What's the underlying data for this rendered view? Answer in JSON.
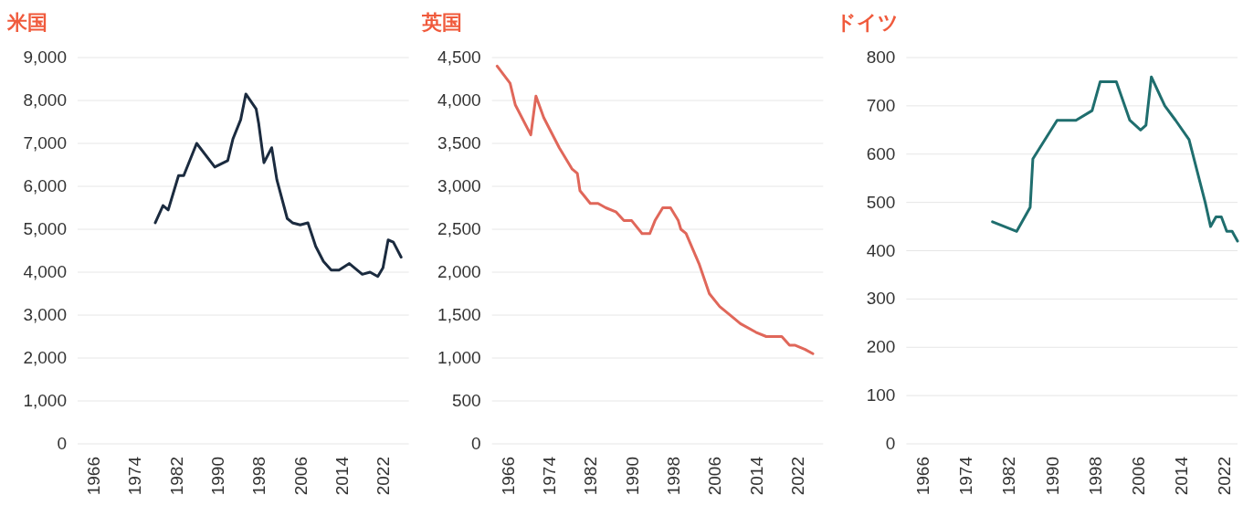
{
  "chart_data": [
    {
      "type": "line",
      "title": "米国",
      "grid": "y",
      "xlim": [
        1963,
        2027
      ],
      "xticks": [
        1966,
        1974,
        1982,
        1990,
        1998,
        2006,
        2014,
        2022
      ],
      "ylim": [
        0,
        9000
      ],
      "yticks": [
        0,
        {
          "value": 1000,
          "label": "1,000"
        },
        {
          "value": 2000,
          "label": "2,000"
        },
        {
          "value": 3000,
          "label": "3,000"
        },
        {
          "value": 4000,
          "label": "4,000"
        },
        {
          "value": 5000,
          "label": "5,000"
        },
        {
          "value": 6000,
          "label": "6,000"
        },
        {
          "value": 7000,
          "label": "7,000"
        },
        {
          "value": 8000,
          "label": "8,000"
        },
        {
          "value": 9000,
          "label": "9,000"
        }
      ],
      "x": [
        1978,
        1979.5,
        1980.5,
        1982.5,
        1983.5,
        1986,
        1989.5,
        1992,
        1993,
        1994.5,
        1995.5,
        1997.5,
        1998,
        1999,
        2000.5,
        2001.5,
        2003.5,
        2004.5,
        2006,
        2007.5,
        2009,
        2010.5,
        2012,
        2013.5,
        2015.5,
        2018,
        2019.5,
        2021,
        2022,
        2023,
        2024,
        2025.5
      ],
      "series": [
        {
          "color": "#1b2b3f",
          "values": [
            5150,
            5550,
            5450,
            6250,
            6250,
            7000,
            6450,
            6600,
            7100,
            7550,
            8150,
            7800,
            7450,
            6550,
            6900,
            6150,
            5250,
            5150,
            5100,
            5150,
            4600,
            4250,
            4050,
            4050,
            4200,
            3950,
            4000,
            3900,
            4100,
            4750,
            4700,
            4350
          ]
        }
      ]
    },
    {
      "type": "line",
      "title": "英国",
      "grid": "y",
      "xlim": [
        1963,
        2027
      ],
      "xticks": [
        1966,
        1974,
        1982,
        1990,
        1998,
        2006,
        2014,
        2022
      ],
      "ylim": [
        0,
        4500
      ],
      "yticks": [
        0,
        500,
        {
          "value": 1000,
          "label": "1,000"
        },
        {
          "value": 1500,
          "label": "1,500"
        },
        {
          "value": 2000,
          "label": "2,000"
        },
        {
          "value": 2500,
          "label": "2,500"
        },
        {
          "value": 3000,
          "label": "3,000"
        },
        {
          "value": 3500,
          "label": "3,500"
        },
        {
          "value": 4000,
          "label": "4,000"
        },
        {
          "value": 4500,
          "label": "4,500"
        }
      ],
      "x": [
        1964,
        1966.5,
        1967.5,
        1970.5,
        1971.5,
        1973,
        1976,
        1978.5,
        1979.5,
        1980,
        1982,
        1983.5,
        1985,
        1987,
        1988.5,
        1990,
        1992,
        1993.5,
        1994.5,
        1996,
        1997.5,
        1999,
        1999.5,
        2000.5,
        2003,
        2005,
        2007,
        2010,
        2011,
        2014,
        2016,
        2017.5,
        2019,
        2020.5,
        2021.5,
        2023.5,
        2025
      ],
      "series": [
        {
          "color": "#e0675a",
          "values": [
            4400,
            4200,
            3950,
            3600,
            4050,
            3800,
            3450,
            3200,
            3150,
            2950,
            2800,
            2800,
            2750,
            2700,
            2600,
            2600,
            2450,
            2450,
            2600,
            2750,
            2750,
            2600,
            2500,
            2450,
            2100,
            1750,
            1600,
            1450,
            1400,
            1300,
            1250,
            1250,
            1250,
            1150,
            1150,
            1100,
            1050
          ]
        }
      ]
    },
    {
      "type": "line",
      "title": "ドイツ",
      "grid": "y",
      "xlim": [
        1963,
        2024.5
      ],
      "xticks": [
        1966,
        1974,
        1982,
        1990,
        1998,
        2006,
        2014,
        2022
      ],
      "ylim": [
        0,
        800
      ],
      "yticks": [
        0,
        100,
        200,
        300,
        400,
        500,
        600,
        700,
        800
      ],
      "x": [
        1979,
        1983.5,
        1986,
        1986.5,
        1991,
        1994.5,
        1997.5,
        1999,
        2002,
        2004.5,
        2006.5,
        2007.5,
        2008.5,
        2011,
        2013,
        2015.5,
        2018.5,
        2019.5,
        2020.5,
        2021.5,
        2022.5,
        2023.5,
        2024.5
      ],
      "series": [
        {
          "color": "#1f6e6e",
          "values": [
            460,
            440,
            490,
            590,
            670,
            670,
            690,
            750,
            750,
            670,
            650,
            660,
            760,
            700,
            670,
            630,
            500,
            450,
            470,
            470,
            440,
            440,
            420
          ]
        }
      ]
    }
  ]
}
